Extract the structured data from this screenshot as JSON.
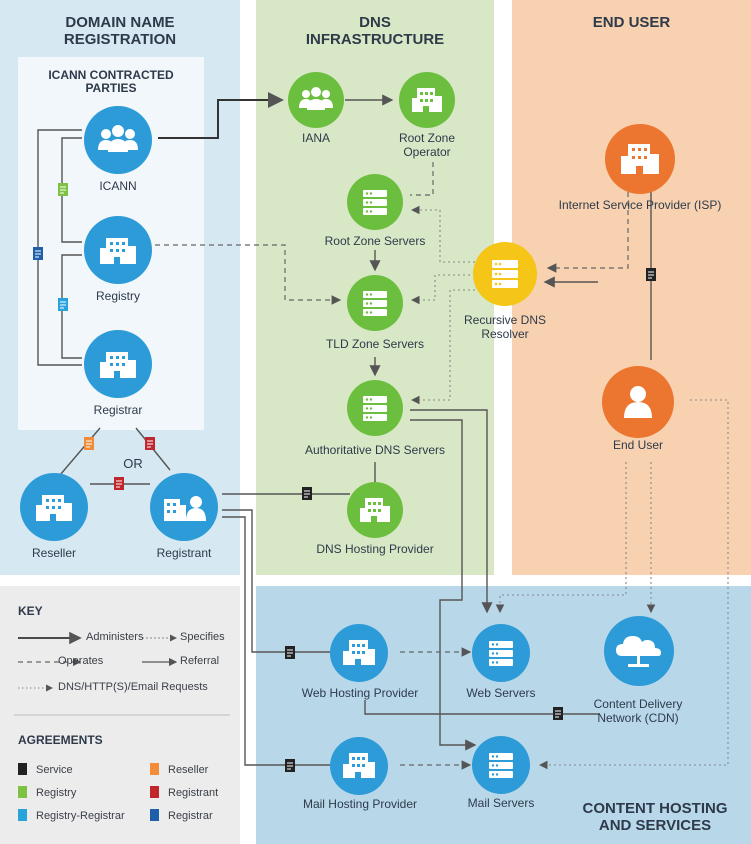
{
  "panels": {
    "domain_title": "DOMAIN NAME\nREGISTRATION",
    "icann_parties_title": "ICANN CONTRACTED\nPARTIES",
    "dns_title": "DNS\nINFRASTRUCTURE",
    "end_user_title": "END USER",
    "content_title": "CONTENT HOSTING\nAND SERVICES"
  },
  "nodes": {
    "icann": "ICANN",
    "registry": "Registry",
    "registrar": "Registrar",
    "reseller": "Reseller",
    "registrant": "Registrant",
    "or": "OR",
    "iana": "IANA",
    "root_zone_operator": "Root Zone\nOperator",
    "root_zone_servers": "Root Zone Servers",
    "tld_zone_servers": "TLD Zone Servers",
    "authoritative_dns_servers": "Authoritative DNS Servers",
    "dns_hosting_provider": "DNS Hosting Provider",
    "recursive_dns_resolver": "Recursive DNS\nResolver",
    "isp": "Internet Service Provider (ISP)",
    "end_user": "End User",
    "web_hosting_provider": "Web Hosting Provider",
    "web_servers": "Web Servers",
    "cdn": "Content Delivery\nNetwork (CDN)",
    "mail_hosting_provider": "Mail Hosting Provider",
    "mail_servers": "Mail Servers"
  },
  "key": {
    "title": "KEY",
    "administers": "Administers",
    "specifies": "Specifies",
    "operates": "Operates",
    "referral": "Referral",
    "requests": "DNS/HTTP(S)/Email Requests"
  },
  "agreements": {
    "title": "AGREEMENTS",
    "service": "Service",
    "registry": "Registry",
    "registry_registrar": "Registry-Registrar",
    "reseller": "Reseller",
    "registrant": "Registrant",
    "registrar": "Registrar"
  },
  "colors": {
    "blue_panel": "#d6e9f3",
    "green_panel": "#d8e7c6",
    "orange_panel": "#f8d2b0",
    "content_panel": "#b8d8ea",
    "key_panel": "#ececec",
    "blue_icon": "#2d9bd8",
    "green_icon": "#6cbf3e",
    "orange_icon": "#ec7630",
    "yellow_icon": "#f5c518",
    "doc_black": "#222222",
    "doc_green": "#7dc242",
    "doc_lightblue": "#29a3dc",
    "doc_orange": "#f28c38",
    "doc_red": "#c0272d",
    "doc_darkblue": "#1f5fa8"
  }
}
